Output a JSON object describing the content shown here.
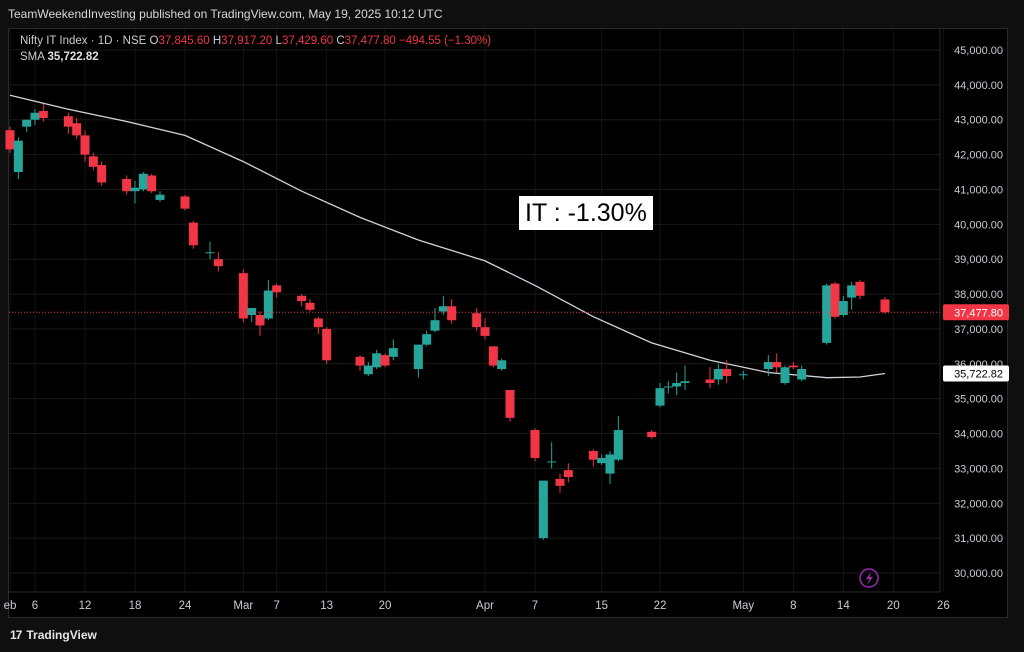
{
  "header": {
    "published_by": "TeamWeekendInvesting published on TradingView.com, May 19, 2025 10:12 UTC"
  },
  "legend": {
    "symbol": "Nifty IT Index · 1D · NSE",
    "open_label": "O",
    "open": "37,845.60",
    "high_label": "H",
    "high": "37,917.20",
    "low_label": "L",
    "low": "37,429.60",
    "close_label": "C",
    "close": "37,477.80",
    "change": "−494.55 (−1.30%)",
    "sma_label": "SMA",
    "sma_value": "35,722.82"
  },
  "annotation": {
    "text": "IT : -1.30%"
  },
  "footer": {
    "logo_mark": "17",
    "logo_text": "TradingView"
  },
  "colors": {
    "up": "#26a69a",
    "down": "#f23645",
    "sma": "#d1d4dc",
    "price_line": "#f23645"
  },
  "icons": {
    "flash": "lightning-icon"
  },
  "chart_data": {
    "type": "candlestick",
    "y_axis_ticks": [
      "30,000.00",
      "31,000.00",
      "32,000.00",
      "33,000.00",
      "34,000.00",
      "35,000.00",
      "36,000.00",
      "37,000.00",
      "38,000.00",
      "39,000.00",
      "40,000.00",
      "41,000.00",
      "42,000.00",
      "43,000.00",
      "44,000.00",
      "45,000.00"
    ],
    "ylim": [
      29500,
      45400
    ],
    "x_axis_ticks": [
      {
        "label": "eb",
        "date": "2025-02-03"
      },
      {
        "label": "6",
        "date": "2025-02-06"
      },
      {
        "label": "12",
        "date": "2025-02-12"
      },
      {
        "label": "18",
        "date": "2025-02-18"
      },
      {
        "label": "24",
        "date": "2025-02-24"
      },
      {
        "label": "Mar",
        "date": "2025-03-03"
      },
      {
        "label": "7",
        "date": "2025-03-07"
      },
      {
        "label": "13",
        "date": "2025-03-13"
      },
      {
        "label": "20",
        "date": "2025-03-20"
      },
      {
        "label": "Apr",
        "date": "2025-04-01"
      },
      {
        "label": "7",
        "date": "2025-04-07"
      },
      {
        "label": "15",
        "date": "2025-04-15"
      },
      {
        "label": "22",
        "date": "2025-04-22"
      },
      {
        "label": "May",
        "date": "2025-05-02"
      },
      {
        "label": "8",
        "date": "2025-05-08"
      },
      {
        "label": "14",
        "date": "2025-05-14"
      },
      {
        "label": "20",
        "date": "2025-05-20"
      },
      {
        "label": "26",
        "date": "2025-05-26"
      }
    ],
    "last_price": {
      "label": "37,477.80",
      "value": 37477.8
    },
    "sma_last": {
      "label": "35,722.82",
      "value": 35722.82
    },
    "candles": [
      {
        "date": "2025-02-03",
        "o": 42700,
        "h": 42800,
        "c": 42150,
        "l": 42050
      },
      {
        "date": "2025-02-04",
        "o": 41500,
        "h": 42500,
        "c": 42400,
        "l": 41300
      },
      {
        "date": "2025-02-05",
        "o": 42800,
        "h": 43000,
        "c": 43000,
        "l": 42650
      },
      {
        "date": "2025-02-06",
        "o": 43000,
        "h": 43300,
        "c": 43200,
        "l": 42850
      },
      {
        "date": "2025-02-07",
        "o": 43250,
        "h": 43450,
        "c": 43050,
        "l": 42950
      },
      {
        "date": "2025-02-10",
        "o": 43100,
        "h": 43200,
        "c": 42800,
        "l": 42600
      },
      {
        "date": "2025-02-11",
        "o": 42900,
        "h": 43050,
        "c": 42550,
        "l": 42450
      },
      {
        "date": "2025-02-12",
        "o": 42550,
        "h": 42700,
        "c": 42000,
        "l": 41800
      },
      {
        "date": "2025-02-13",
        "o": 41950,
        "h": 42050,
        "c": 41650,
        "l": 41550
      },
      {
        "date": "2025-02-14",
        "o": 41700,
        "h": 41800,
        "c": 41200,
        "l": 41100
      },
      {
        "date": "2025-02-17",
        "o": 41300,
        "h": 41400,
        "c": 40950,
        "l": 40850
      },
      {
        "date": "2025-02-18",
        "o": 40950,
        "h": 41250,
        "c": 41050,
        "l": 40600
      },
      {
        "date": "2025-02-19",
        "o": 41000,
        "h": 41500,
        "c": 41450,
        "l": 40950
      },
      {
        "date": "2025-02-20",
        "o": 41400,
        "h": 41450,
        "c": 40950,
        "l": 40900
      },
      {
        "date": "2025-02-21",
        "o": 40700,
        "h": 40950,
        "c": 40850,
        "l": 40650
      },
      {
        "date": "2025-02-24",
        "o": 40800,
        "h": 40850,
        "c": 40450,
        "l": 40400
      },
      {
        "date": "2025-02-25",
        "o": 40050,
        "h": 40100,
        "c": 39400,
        "l": 39300
      },
      {
        "date": "2025-02-27",
        "o": 39200,
        "h": 39500,
        "c": 39200,
        "l": 39000
      },
      {
        "date": "2025-02-28",
        "o": 39000,
        "h": 39200,
        "c": 38800,
        "l": 38650
      },
      {
        "date": "2025-03-03",
        "o": 38600,
        "h": 38700,
        "c": 37300,
        "l": 37200
      },
      {
        "date": "2025-03-04",
        "o": 37400,
        "h": 37600,
        "c": 37600,
        "l": 37200
      },
      {
        "date": "2025-03-05",
        "o": 37400,
        "h": 37500,
        "c": 37100,
        "l": 36800
      },
      {
        "date": "2025-03-06",
        "o": 37300,
        "h": 38400,
        "c": 38100,
        "l": 37250
      },
      {
        "date": "2025-03-07",
        "o": 38250,
        "h": 38300,
        "c": 38050,
        "l": 37900
      },
      {
        "date": "2025-03-10",
        "o": 37950,
        "h": 38000,
        "c": 37800,
        "l": 37650
      },
      {
        "date": "2025-03-11",
        "o": 37750,
        "h": 37850,
        "c": 37550,
        "l": 37500
      },
      {
        "date": "2025-03-12",
        "o": 37300,
        "h": 37350,
        "c": 37050,
        "l": 36850
      },
      {
        "date": "2025-03-13",
        "o": 37000,
        "h": 37050,
        "c": 36100,
        "l": 36000
      },
      {
        "date": "2025-03-17",
        "o": 36200,
        "h": 36250,
        "c": 35950,
        "l": 35800
      },
      {
        "date": "2025-03-18",
        "o": 35700,
        "h": 36050,
        "c": 35950,
        "l": 35650
      },
      {
        "date": "2025-03-19",
        "o": 35900,
        "h": 36400,
        "c": 36300,
        "l": 35850
      },
      {
        "date": "2025-03-20",
        "o": 36250,
        "h": 36300,
        "c": 35950,
        "l": 35900
      },
      {
        "date": "2025-03-21",
        "o": 36200,
        "h": 36700,
        "c": 36450,
        "l": 36100
      },
      {
        "date": "2025-03-24",
        "o": 35850,
        "h": 36550,
        "c": 36550,
        "l": 35600
      },
      {
        "date": "2025-03-25",
        "o": 36550,
        "h": 36950,
        "c": 36850,
        "l": 36500
      },
      {
        "date": "2025-03-26",
        "o": 36950,
        "h": 37600,
        "c": 37250,
        "l": 36900
      },
      {
        "date": "2025-03-27",
        "o": 37500,
        "h": 37950,
        "c": 37650,
        "l": 37400
      },
      {
        "date": "2025-03-28",
        "o": 37650,
        "h": 37850,
        "c": 37250,
        "l": 37150
      },
      {
        "date": "2025-03-31",
        "o": 37450,
        "h": 37600,
        "c": 37050,
        "l": 36950
      },
      {
        "date": "2025-04-01",
        "o": 37050,
        "h": 37300,
        "c": 36800,
        "l": 36700
      },
      {
        "date": "2025-04-02",
        "o": 36500,
        "h": 36500,
        "c": 35950,
        "l": 35900
      },
      {
        "date": "2025-04-03",
        "o": 35850,
        "h": 36150,
        "c": 36100,
        "l": 35800
      },
      {
        "date": "2025-04-04",
        "o": 35250,
        "h": 35250,
        "c": 34450,
        "l": 34350
      },
      {
        "date": "2025-04-07",
        "o": 34100,
        "h": 34150,
        "c": 33300,
        "l": 33200
      },
      {
        "date": "2025-04-08",
        "o": 31000,
        "h": 32600,
        "c": 32650,
        "l": 30950
      },
      {
        "date": "2025-04-09",
        "o": 33200,
        "h": 33750,
        "c": 33200,
        "l": 33000
      },
      {
        "date": "2025-04-10",
        "o": 32700,
        "h": 32850,
        "c": 32500,
        "l": 32300
      },
      {
        "date": "2025-04-11",
        "o": 32950,
        "h": 33150,
        "c": 32750,
        "l": 32600
      },
      {
        "date": "2025-04-14",
        "o": 33500,
        "h": 33550,
        "c": 33250,
        "l": 33050
      },
      {
        "date": "2025-04-15",
        "o": 33150,
        "h": 33400,
        "c": 33300,
        "l": 33100
      },
      {
        "date": "2025-04-16",
        "o": 32850,
        "h": 33500,
        "c": 33400,
        "l": 32550
      },
      {
        "date": "2025-04-17",
        "o": 33250,
        "h": 34500,
        "c": 34100,
        "l": 33200
      },
      {
        "date": "2025-04-21",
        "o": 34050,
        "h": 34100,
        "c": 33900,
        "l": 33850
      },
      {
        "date": "2025-04-22",
        "o": 34800,
        "h": 35450,
        "c": 35300,
        "l": 34750
      },
      {
        "date": "2025-04-23",
        "o": 35350,
        "h": 35500,
        "c": 35350,
        "l": 35150
      },
      {
        "date": "2025-04-24",
        "o": 35350,
        "h": 35750,
        "c": 35450,
        "l": 35100
      },
      {
        "date": "2025-04-25",
        "o": 35450,
        "h": 35950,
        "c": 35500,
        "l": 35250
      },
      {
        "date": "2025-04-28",
        "o": 35550,
        "h": 35900,
        "c": 35450,
        "l": 35300
      },
      {
        "date": "2025-04-29",
        "o": 35550,
        "h": 36000,
        "c": 35850,
        "l": 35400
      },
      {
        "date": "2025-04-30",
        "o": 35850,
        "h": 36100,
        "c": 35650,
        "l": 35450
      },
      {
        "date": "2025-05-02",
        "o": 35700,
        "h": 35800,
        "c": 35700,
        "l": 35550
      },
      {
        "date": "2025-05-05",
        "o": 35850,
        "h": 36250,
        "c": 36050,
        "l": 35650
      },
      {
        "date": "2025-05-06",
        "o": 36050,
        "h": 36300,
        "c": 35900,
        "l": 35750
      },
      {
        "date": "2025-05-07",
        "o": 35450,
        "h": 35950,
        "c": 35900,
        "l": 35400
      },
      {
        "date": "2025-05-08",
        "o": 35950,
        "h": 36050,
        "c": 35900,
        "l": 35850
      },
      {
        "date": "2025-05-09",
        "o": 35550,
        "h": 35950,
        "c": 35850,
        "l": 35500
      },
      {
        "date": "2025-05-12",
        "o": 36600,
        "h": 38300,
        "c": 38250,
        "l": 36550
      },
      {
        "date": "2025-05-13",
        "o": 38300,
        "h": 38350,
        "c": 37350,
        "l": 37300
      },
      {
        "date": "2025-05-14",
        "o": 37400,
        "h": 37950,
        "c": 37800,
        "l": 37350
      },
      {
        "date": "2025-05-15",
        "o": 37900,
        "h": 38350,
        "c": 38250,
        "l": 37550
      },
      {
        "date": "2025-05-16",
        "o": 38350,
        "h": 38400,
        "c": 37950,
        "l": 37850
      },
      {
        "date": "2025-05-19",
        "o": 37845.6,
        "h": 37917.2,
        "c": 37477.8,
        "l": 37429.6
      }
    ],
    "sma_series": [
      {
        "date": "2025-02-03",
        "v": 43700
      },
      {
        "date": "2025-02-10",
        "v": 43300
      },
      {
        "date": "2025-02-17",
        "v": 42950
      },
      {
        "date": "2025-02-24",
        "v": 42550
      },
      {
        "date": "2025-03-03",
        "v": 41800
      },
      {
        "date": "2025-03-10",
        "v": 40950
      },
      {
        "date": "2025-03-17",
        "v": 40200
      },
      {
        "date": "2025-03-24",
        "v": 39550
      },
      {
        "date": "2025-04-01",
        "v": 38950
      },
      {
        "date": "2025-04-07",
        "v": 38250
      },
      {
        "date": "2025-04-14",
        "v": 37350
      },
      {
        "date": "2025-04-21",
        "v": 36600
      },
      {
        "date": "2025-04-28",
        "v": 36100
      },
      {
        "date": "2025-05-05",
        "v": 35750
      },
      {
        "date": "2025-05-12",
        "v": 35600
      },
      {
        "date": "2025-05-16",
        "v": 35620
      },
      {
        "date": "2025-05-19",
        "v": 35722.82
      }
    ]
  }
}
